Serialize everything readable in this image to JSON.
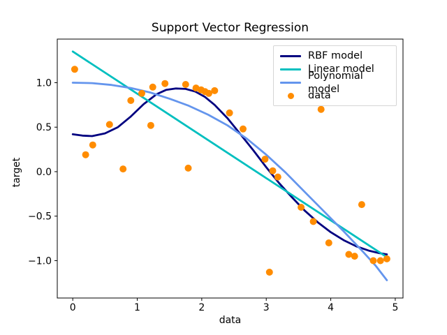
{
  "figure": {
    "background": "#ffffff",
    "spine_color": "#000000",
    "tick_color": "#000000"
  },
  "chart_data": {
    "type": "line",
    "title": "Support Vector Regression",
    "xlabel": "data",
    "ylabel": "target",
    "xlim": [
      -0.24,
      5.12
    ],
    "ylim": [
      -1.42,
      1.49
    ],
    "grid": false,
    "legend_position": "upper right",
    "xticks": [
      0,
      1,
      2,
      3,
      4,
      5
    ],
    "xtick_labels": [
      "0",
      "1",
      "2",
      "3",
      "4",
      "5"
    ],
    "yticks": [
      1.0,
      0.5,
      0.0,
      -0.5,
      -1.0
    ],
    "ytick_labels": [
      "1.0",
      "0.5",
      "0.0",
      "−0.5",
      "−1.0"
    ],
    "series": [
      {
        "name": "RBF model",
        "type": "line",
        "color": "#000080",
        "points": [
          [
            0.0,
            0.42
          ],
          [
            0.15,
            0.405
          ],
          [
            0.3,
            0.4
          ],
          [
            0.5,
            0.43
          ],
          [
            0.7,
            0.5
          ],
          [
            0.9,
            0.62
          ],
          [
            1.1,
            0.76
          ],
          [
            1.3,
            0.87
          ],
          [
            1.45,
            0.92
          ],
          [
            1.6,
            0.935
          ],
          [
            1.75,
            0.93
          ],
          [
            1.9,
            0.9
          ],
          [
            2.05,
            0.84
          ],
          [
            2.2,
            0.75
          ],
          [
            2.4,
            0.6
          ],
          [
            2.6,
            0.42
          ],
          [
            2.8,
            0.24
          ],
          [
            3.0,
            0.05
          ],
          [
            3.2,
            -0.13
          ],
          [
            3.4,
            -0.29
          ],
          [
            3.6,
            -0.44
          ],
          [
            3.8,
            -0.57
          ],
          [
            4.0,
            -0.68
          ],
          [
            4.2,
            -0.77
          ],
          [
            4.4,
            -0.84
          ],
          [
            4.6,
            -0.89
          ],
          [
            4.75,
            -0.915
          ],
          [
            4.87,
            -0.93
          ]
        ]
      },
      {
        "name": "Linear model",
        "type": "line",
        "color": "#00bfbf",
        "points": [
          [
            0.0,
            1.35
          ],
          [
            4.87,
            -0.96
          ]
        ]
      },
      {
        "name": "Polynomial model",
        "type": "line",
        "color": "#6495ed",
        "points": [
          [
            0.0,
            1.0
          ],
          [
            0.3,
            0.995
          ],
          [
            0.6,
            0.975
          ],
          [
            0.9,
            0.94
          ],
          [
            1.2,
            0.89
          ],
          [
            1.5,
            0.82
          ],
          [
            1.8,
            0.74
          ],
          [
            2.1,
            0.64
          ],
          [
            2.4,
            0.52
          ],
          [
            2.7,
            0.37
          ],
          [
            3.0,
            0.19
          ],
          [
            3.3,
            -0.01
          ],
          [
            3.6,
            -0.23
          ],
          [
            3.9,
            -0.45
          ],
          [
            4.2,
            -0.67
          ],
          [
            4.5,
            -0.9
          ],
          [
            4.7,
            -1.06
          ],
          [
            4.87,
            -1.22
          ]
        ]
      },
      {
        "name": "data",
        "type": "scatter",
        "color": "#ff8c00",
        "marker_radius": 5,
        "points": [
          [
            0.03,
            1.15
          ],
          [
            0.2,
            0.19
          ],
          [
            0.31,
            0.3
          ],
          [
            0.57,
            0.53
          ],
          [
            0.78,
            0.03
          ],
          [
            0.9,
            0.8
          ],
          [
            1.07,
            0.88
          ],
          [
            1.21,
            0.52
          ],
          [
            1.24,
            0.95
          ],
          [
            1.43,
            0.99
          ],
          [
            1.75,
            0.98
          ],
          [
            1.79,
            0.04
          ],
          [
            1.91,
            0.94
          ],
          [
            1.99,
            0.92
          ],
          [
            2.05,
            0.9
          ],
          [
            2.11,
            0.88
          ],
          [
            2.2,
            0.91
          ],
          [
            2.43,
            0.66
          ],
          [
            2.64,
            0.48
          ],
          [
            2.98,
            0.14
          ],
          [
            3.05,
            -1.13
          ],
          [
            3.1,
            0.01
          ],
          [
            3.18,
            -0.06
          ],
          [
            3.54,
            -0.4
          ],
          [
            3.73,
            -0.56
          ],
          [
            3.85,
            0.7
          ],
          [
            3.97,
            -0.8
          ],
          [
            4.28,
            -0.93
          ],
          [
            4.37,
            -0.95
          ],
          [
            4.48,
            -0.37
          ],
          [
            4.66,
            -1.0
          ],
          [
            4.77,
            -1.0
          ],
          [
            4.87,
            -0.98
          ]
        ]
      }
    ]
  }
}
